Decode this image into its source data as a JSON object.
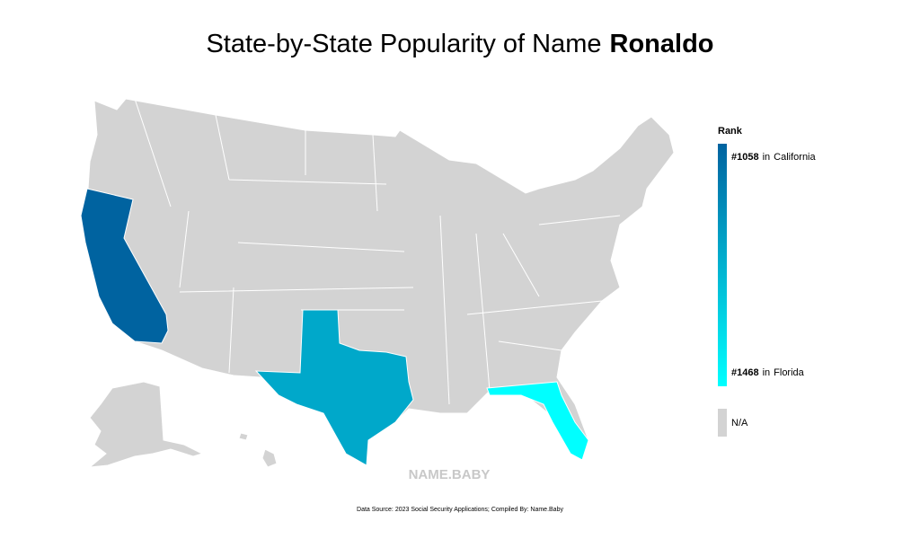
{
  "title": {
    "prefix": "State-by-State Popularity of Name",
    "name": "Ronaldo"
  },
  "legend": {
    "title": "Rank",
    "connector": "in",
    "na_label": "N/A"
  },
  "color_scale": {
    "low_color": "#0063a0",
    "high_color": "#00ffff",
    "na_color": "#d3d3d3"
  },
  "states": [
    {
      "name": "California",
      "rank": 1058,
      "rank_label": "#1058"
    },
    {
      "name": "Texas",
      "rank": 1240
    },
    {
      "name": "Florida",
      "rank": 1468,
      "rank_label": "#1468"
    }
  ],
  "watermark": "NAME.BABY",
  "footer": "Data Source: 2023 Social Security Applications; Compiled By: Name.Baby"
}
